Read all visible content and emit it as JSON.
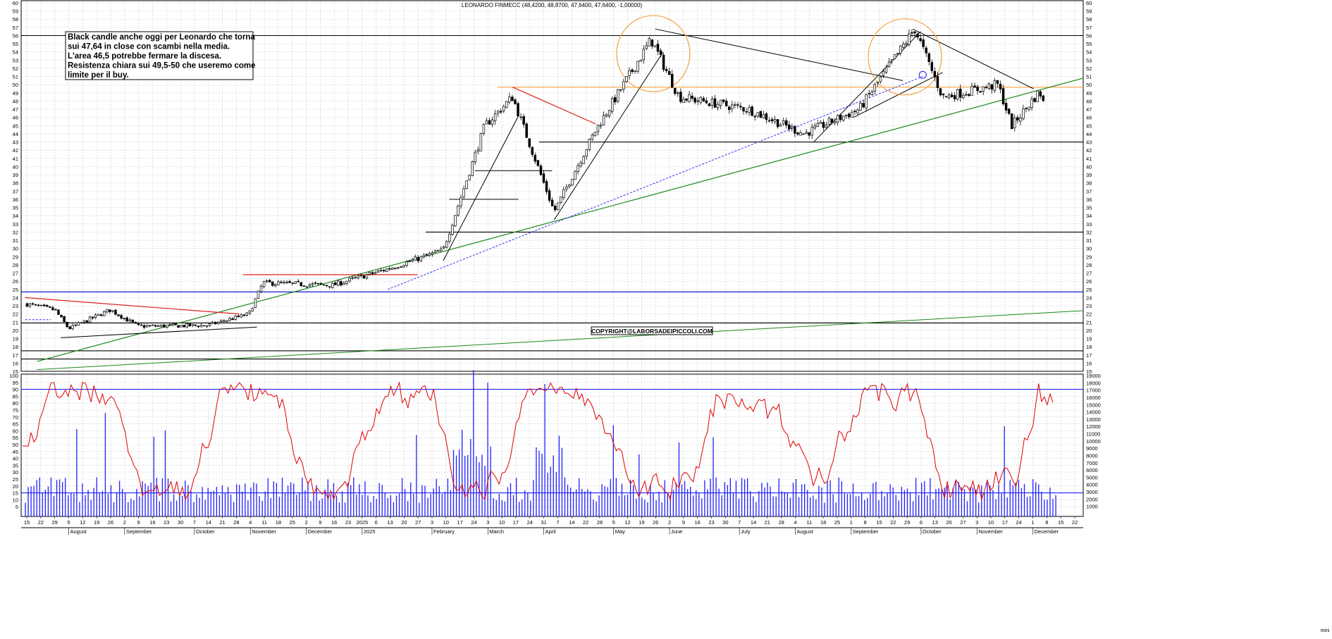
{
  "chart_data": [
    {
      "type": "candlestick",
      "title": "LEONARDO FINMECC (48,4200, 48,8700, 47,6400, 47,6400, -1,00000)",
      "ylim": [
        15,
        60
      ],
      "y_ticks": [
        15,
        16,
        17,
        18,
        19,
        20,
        21,
        22,
        23,
        24,
        25,
        26,
        27,
        28,
        29,
        30,
        31,
        32,
        33,
        34,
        35,
        36,
        37,
        38,
        39,
        40,
        41,
        42,
        43,
        44,
        45,
        46,
        47,
        48,
        49,
        50,
        51,
        52,
        53,
        54,
        55,
        56,
        57,
        58,
        59,
        60
      ],
      "grid": true,
      "annotation": [
        "Black candle anche oggi per Leonardo che torna",
        "sui 47,64 in close con scambi nella media.",
        "L'area 46,5 potrebbe fermare la discesa.",
        "Resistenza chiara sui 49,5-50 che useremo come",
        "limite per il buy."
      ],
      "copyright": "COPYRIGHT@LABORSADEIPICCOLI.COM",
      "last_close": 47.64,
      "horizontal_levels": [
        {
          "value": 56.0,
          "color": "#000000"
        },
        {
          "value": 49.7,
          "color": "#f4a040"
        },
        {
          "value": 43.0,
          "color": "#000000"
        },
        {
          "value": 32.0,
          "color": "#000000"
        },
        {
          "value": 24.7,
          "color": "#0000cc"
        },
        {
          "value": 20.9,
          "color": "#000000"
        },
        {
          "value": 17.5,
          "color": "#000000"
        },
        {
          "value": 16.5,
          "color": "#000000"
        }
      ],
      "approx_price_path": [
        {
          "date": "2024-07-15",
          "close": 23.2
        },
        {
          "date": "2024-07-29",
          "close": 22.5
        },
        {
          "date": "2024-08-05",
          "close": 20.2
        },
        {
          "date": "2024-08-26",
          "close": 22.5
        },
        {
          "date": "2024-09-09",
          "close": 20.5
        },
        {
          "date": "2024-10-14",
          "close": 20.6
        },
        {
          "date": "2024-11-04",
          "close": 22.0
        },
        {
          "date": "2024-11-11",
          "close": 25.8
        },
        {
          "date": "2024-12-16",
          "close": 25.5
        },
        {
          "date": "2025-01-13",
          "close": 27.5
        },
        {
          "date": "2025-02-10",
          "close": 29.8
        },
        {
          "date": "2025-03-03",
          "close": 45.0
        },
        {
          "date": "2025-03-17",
          "close": 48.5
        },
        {
          "date": "2025-04-07",
          "close": 34.5
        },
        {
          "date": "2025-04-28",
          "close": 44.5
        },
        {
          "date": "2025-05-26",
          "close": 55.5
        },
        {
          "date": "2025-06-09",
          "close": 48.5
        },
        {
          "date": "2025-07-14",
          "close": 47.0
        },
        {
          "date": "2025-08-11",
          "close": 44.0
        },
        {
          "date": "2025-09-08",
          "close": 47.0
        },
        {
          "date": "2025-10-06",
          "close": 56.8
        },
        {
          "date": "2025-10-20",
          "close": 48.5
        },
        {
          "date": "2025-11-17",
          "close": 50.0
        },
        {
          "date": "2025-11-24",
          "close": 45.0
        },
        {
          "date": "2025-12-08",
          "close": 49.2
        },
        {
          "date": "2025-12-10",
          "close": 47.64
        }
      ]
    },
    {
      "type": "line",
      "name": "oscillator",
      "ylim": [
        0,
        100
      ],
      "y_ticks": [
        5,
        10,
        15,
        20,
        25,
        30,
        35,
        40,
        45,
        50,
        55,
        60,
        65,
        70,
        75,
        80,
        85,
        90,
        95,
        100
      ],
      "reference_lines": [
        90,
        15
      ],
      "color": "#e00000"
    },
    {
      "type": "bar",
      "name": "volume",
      "ylim": [
        0,
        19000
      ],
      "y_ticks": [
        1000,
        2000,
        3000,
        4000,
        5000,
        6000,
        7000,
        8000,
        9000,
        10000,
        11000,
        12000,
        13000,
        14000,
        15000,
        16000,
        17000,
        18000,
        19000
      ],
      "color": "#2020ff"
    }
  ],
  "x_axis": {
    "day_ticks": [
      "15",
      "22",
      "29",
      "5",
      "12",
      "19",
      "26",
      "2",
      "9",
      "16",
      "23",
      "30",
      "7",
      "14",
      "21",
      "28",
      "4",
      "11",
      "18",
      "25",
      "2",
      "9",
      "16",
      "23",
      "2025",
      "6",
      "13",
      "20",
      "27",
      "3",
      "10",
      "17",
      "24",
      "3",
      "10",
      "17",
      "24",
      "31",
      "7",
      "14",
      "22",
      "28",
      "5",
      "12",
      "19",
      "26",
      "2",
      "9",
      "16",
      "23",
      "30",
      "7",
      "14",
      "21",
      "28",
      "4",
      "11",
      "18",
      "25",
      "1",
      "8",
      "15",
      "22",
      "29",
      "6",
      "13",
      "20",
      "27",
      "3",
      "10",
      "17",
      "24",
      "1",
      "8",
      "15",
      "22"
    ],
    "month_labels": [
      "August",
      "September",
      "October",
      "November",
      "December",
      "2025",
      "February",
      "March",
      "April",
      "May",
      "June",
      "July",
      "August",
      "September",
      "October",
      "November",
      "December"
    ],
    "axis_label": "mini"
  },
  "colors": {
    "candle": "#000000",
    "grid": "#b8b8b8",
    "trend_green": "#1a8a1a",
    "resistance_red": "#e02020",
    "oscillator": "#e00000",
    "volume": "#2020ff",
    "orange": "#f4a040"
  }
}
